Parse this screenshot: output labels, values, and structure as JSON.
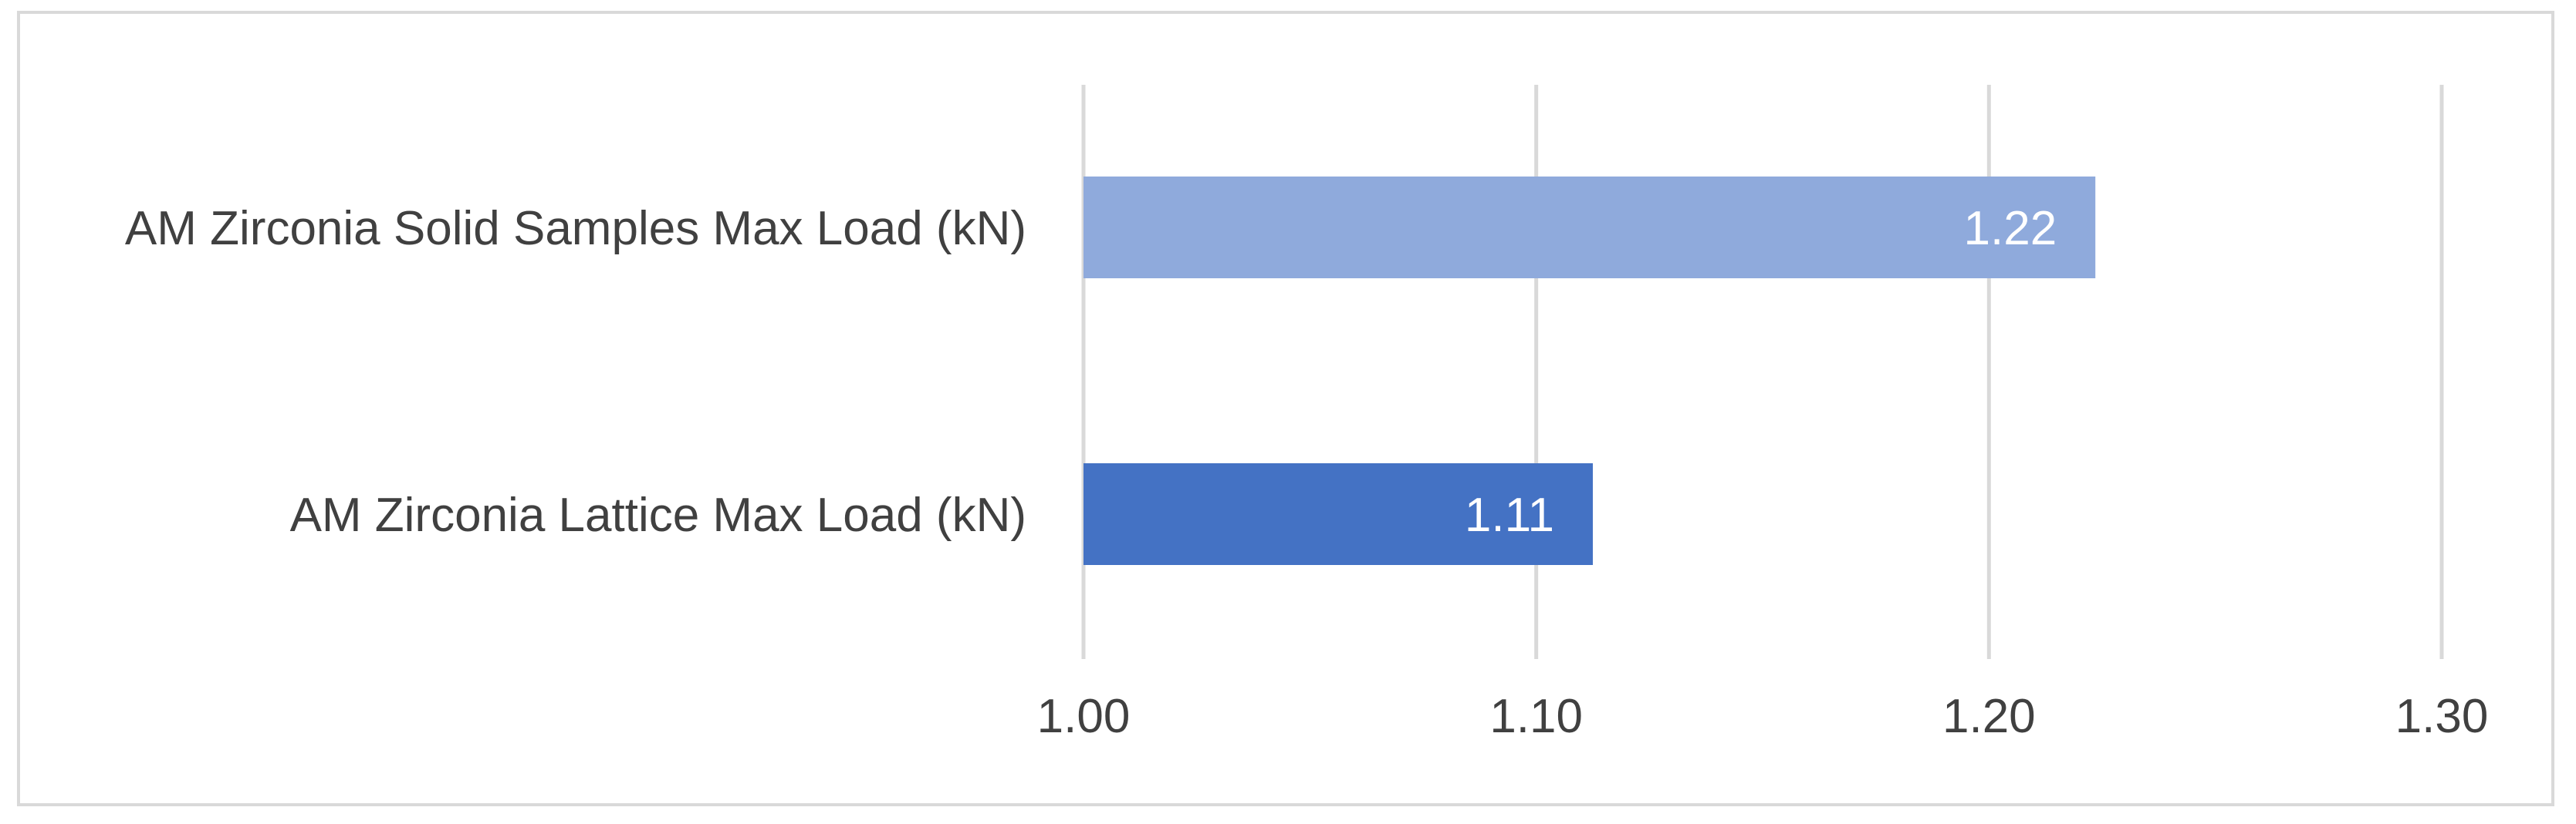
{
  "chart_data": {
    "type": "bar",
    "orientation": "horizontal",
    "categories": [
      "AM Zirconia Solid Samples Max Load (kN)",
      "AM Zirconia Lattice Max Load (kN)"
    ],
    "values": [
      1.2235,
      1.1125
    ],
    "data_labels": [
      "1.22",
      "1.11"
    ],
    "bar_colors": [
      "#8faadc",
      "#4472c4"
    ],
    "xlim": [
      1.0,
      1.3
    ],
    "xticks": [
      1.0,
      1.1,
      1.2,
      1.3
    ],
    "xtick_labels": [
      "1.00",
      "1.10",
      "1.20",
      "1.30"
    ],
    "title": "",
    "xlabel": "",
    "ylabel": "",
    "grid": "vertical",
    "gridline_color": "#d9d9d9",
    "text_color": "#404040",
    "border_color": "#d9d9d9",
    "legend": "none"
  }
}
